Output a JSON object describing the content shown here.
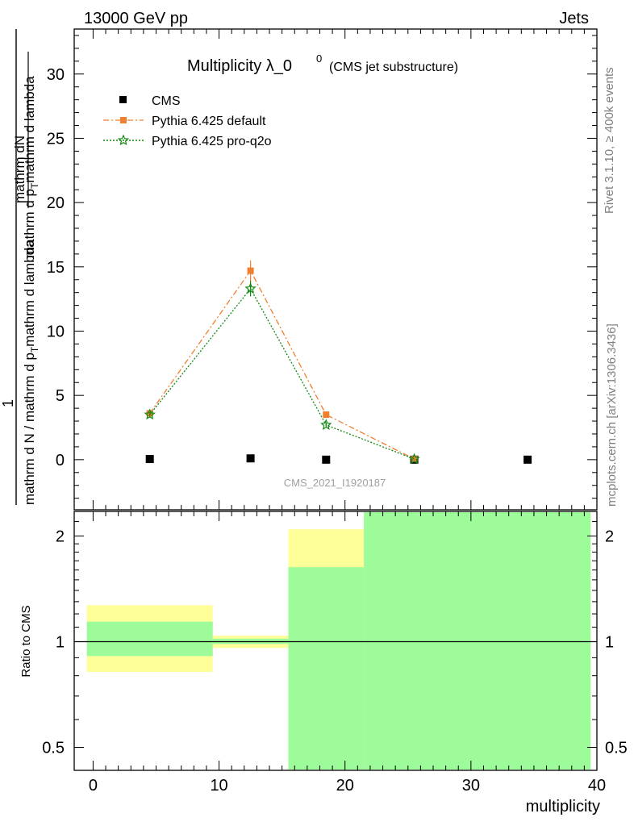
{
  "header": {
    "left": "13000 GeV pp",
    "right": "Jets"
  },
  "title": {
    "main": "Multiplicity λ_0",
    "superscript": "0",
    "sub": "(CMS jet substructure)"
  },
  "side_labels": {
    "rivet": "Rivet 3.1.10, ≥ 400k events",
    "mcplots": "mcplots.cern.ch [arXiv:1306.3436]"
  },
  "watermark": "CMS_2021_I1920187",
  "ylabel_main": {
    "top_num": "1",
    "top_den": "mathrm d N / mathrm d p_T mathrm d lambda",
    "right_num": "mathrm d^2N",
    "right_den": "mathrm d p_T mathrm d lambda"
  },
  "ylabel_main_parts": {
    "a": "mathrm dN",
    "b": "mathrm d p",
    "b_sub": "T",
    "c": "mathrm d lambda",
    "d": "mathrm d N / mathrm d p",
    "d_sub": "T",
    "e": "mathrm d lambda"
  },
  "ylabel_ratio": "Ratio to CMS",
  "xlabel": "multiplicity",
  "legend": [
    {
      "name": "CMS",
      "color": "#000000"
    },
    {
      "name": "Pythia 6.425 default",
      "color": "#f07f2f"
    },
    {
      "name": "Pythia 6.425 pro-q2o",
      "color": "#128912"
    }
  ],
  "chart_data": {
    "type": "line",
    "xlim": [
      -1.5,
      40
    ],
    "main": {
      "ylim": [
        -3.9,
        33.5
      ],
      "yticks": [
        0,
        5,
        10,
        15,
        20,
        25,
        30
      ],
      "series": [
        {
          "name": "CMS",
          "x": [
            4.5,
            12.5,
            18.5,
            25.5,
            34.5
          ],
          "y": [
            0.05,
            0.1,
            0.0,
            0.0,
            0.0
          ],
          "marker": "square",
          "color": "#000000"
        },
        {
          "name": "Pythia 6.425 default",
          "x": [
            4.5,
            12.5,
            18.5,
            25.5
          ],
          "y": [
            3.6,
            14.7,
            3.5,
            0.05
          ],
          "yerr": [
            0.2,
            0.8,
            0.25,
            0.02
          ],
          "marker": "square",
          "color": "#f07f2f",
          "line": "dashdot"
        },
        {
          "name": "Pythia 6.425 pro-q2o",
          "x": [
            4.5,
            12.5,
            18.5,
            25.5
          ],
          "y": [
            3.5,
            13.3,
            2.7,
            0.05
          ],
          "yerr": [
            0.2,
            0.6,
            0.2,
            0.02
          ],
          "marker": "star",
          "color": "#128912",
          "line": "dotted"
        }
      ]
    },
    "ratio": {
      "ylim": [
        0.43,
        2.35
      ],
      "log": true,
      "yticks": [
        0.5,
        1,
        2
      ],
      "reference": 1,
      "bands": [
        {
          "x0": -0.5,
          "x1": 9.5,
          "yellow": [
            0.82,
            1.27
          ],
          "green": [
            0.91,
            1.14
          ]
        },
        {
          "x0": 9.5,
          "x1": 15.5,
          "yellow": [
            0.96,
            1.04
          ],
          "green": [
            0.985,
            1.02
          ]
        },
        {
          "x0": 15.5,
          "x1": 21.5,
          "yellow": [
            0.4,
            2.09
          ],
          "green": [
            0.43,
            1.63
          ]
        },
        {
          "x0": 21.5,
          "x1": 39.5,
          "yellow": [
            0.43,
            2.35
          ],
          "green": [
            0.43,
            2.35
          ]
        }
      ]
    },
    "xticks": [
      0,
      10,
      20,
      30,
      40
    ]
  }
}
